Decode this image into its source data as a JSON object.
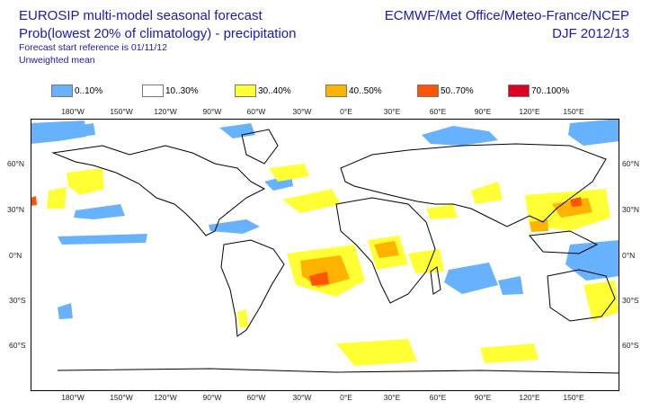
{
  "header": {
    "title_line1": "EUROSIP multi-model seasonal forecast",
    "title_line2": "Prob(lowest 20% of climatology) - precipitation",
    "forecast_ref": "Forecast start reference is 01/11/12",
    "weighting": "Unweighted mean",
    "source": "ECMWF/Met Office/Meteo-France/NCEP",
    "season": "DJF 2012/13"
  },
  "legend": [
    {
      "label": "0..10%",
      "color": "#66b2ff"
    },
    {
      "label": "10..30%",
      "color": "#ffffff"
    },
    {
      "label": "30..40%",
      "color": "#ffff33"
    },
    {
      "label": "40..50%",
      "color": "#ffb300"
    },
    {
      "label": "50..70%",
      "color": "#ff5500"
    },
    {
      "label": "70..100%",
      "color": "#dd0022"
    }
  ],
  "axes": {
    "lon_labels": [
      "180°W",
      "150°W",
      "120°W",
      "90°W",
      "60°W",
      "30°W",
      "0°E",
      "30°E",
      "60°E",
      "90°E",
      "120°E",
      "150°E"
    ],
    "lat_labels_left": [
      "60°N",
      "30°N",
      "0°N",
      "30°S",
      "60°S"
    ],
    "lat_labels_right": [
      "60°N",
      "30°N",
      "0°N",
      "30°S",
      "60°S"
    ]
  },
  "map": {
    "land_color": "#ffffff",
    "coast_color": "#000000",
    "ocean_color": "#ffffff"
  }
}
